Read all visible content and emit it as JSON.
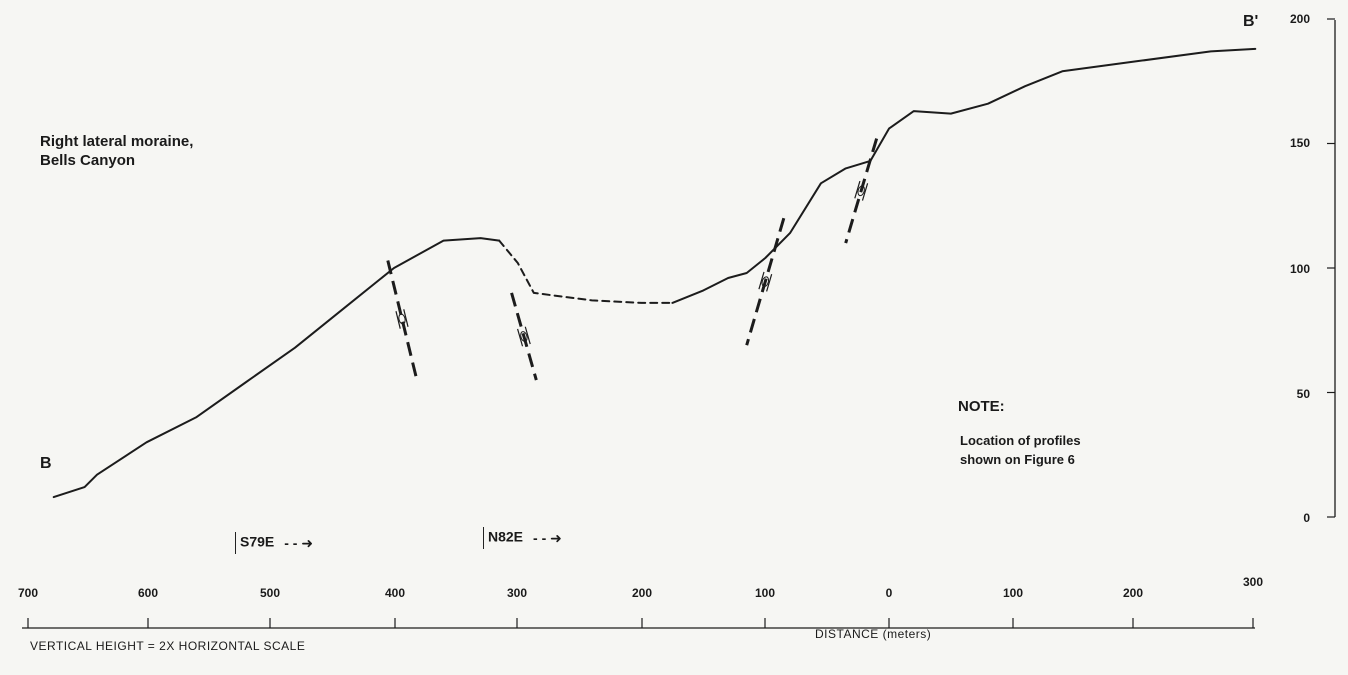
{
  "labels": {
    "title_line1": "Right lateral moraine,",
    "title_line2": "Bells Canyon",
    "point_b": "B",
    "point_b_prime": "B'",
    "note_heading": "NOTE:",
    "note_line1": "Location of profiles",
    "note_line2": "shown on Figure 6",
    "orientation_1": "S79E",
    "orientation_2": "N82E",
    "vertical_scale_note": "VERTICAL HEIGHT = 2X HORIZONTAL SCALE",
    "distance_axis": "DISTANCE (meters)"
  },
  "icons": {
    "arrow": "right-dashed-arrow-icon"
  },
  "x_axis": {
    "ticks": [
      "700",
      "600",
      "500",
      "400",
      "300",
      "200",
      "100",
      "0",
      "100",
      "200",
      "300"
    ],
    "range": [
      -700,
      300
    ]
  },
  "y_axis": {
    "ticks": [
      "200",
      "150",
      "100",
      "50",
      "0"
    ],
    "range": [
      0,
      200
    ]
  },
  "profile": {
    "solid_left": [
      [
        -675,
        8
      ],
      [
        -650,
        12
      ],
      [
        -640,
        17
      ],
      [
        -600,
        30
      ],
      [
        -560,
        40
      ],
      [
        -520,
        54
      ],
      [
        -480,
        68
      ],
      [
        -440,
        84
      ],
      [
        -400,
        100
      ],
      [
        -360,
        111
      ],
      [
        -330,
        112
      ],
      [
        -315,
        111
      ]
    ],
    "dashed_middle": [
      [
        -315,
        111
      ],
      [
        -300,
        102
      ],
      [
        -287,
        90
      ],
      [
        -240,
        87
      ],
      [
        -200,
        86
      ],
      [
        -175,
        86
      ]
    ],
    "solid_right": [
      [
        -175,
        86
      ],
      [
        -150,
        91
      ],
      [
        -130,
        96
      ],
      [
        -115,
        98
      ],
      [
        -100,
        104
      ],
      [
        -80,
        114
      ],
      [
        -55,
        134
      ],
      [
        -35,
        140
      ],
      [
        -15,
        143
      ],
      [
        0,
        156
      ],
      [
        20,
        163
      ],
      [
        50,
        162
      ],
      [
        80,
        166
      ],
      [
        110,
        173
      ],
      [
        140,
        179
      ],
      [
        200,
        183
      ],
      [
        260,
        187
      ],
      [
        296,
        188
      ]
    ]
  },
  "faults": [
    {
      "top": [
        -405,
        103
      ],
      "bottom": [
        -382,
        56
      ]
    },
    {
      "top": [
        -305,
        90
      ],
      "bottom": [
        -285,
        55
      ]
    },
    {
      "top": [
        -85,
        120
      ],
      "bottom": [
        -115,
        69
      ]
    },
    {
      "top": [
        -10,
        152
      ],
      "bottom": [
        -35,
        110
      ]
    }
  ],
  "colors": {
    "ink": "#1c1c1c",
    "paper": "#f6f6f3"
  }
}
